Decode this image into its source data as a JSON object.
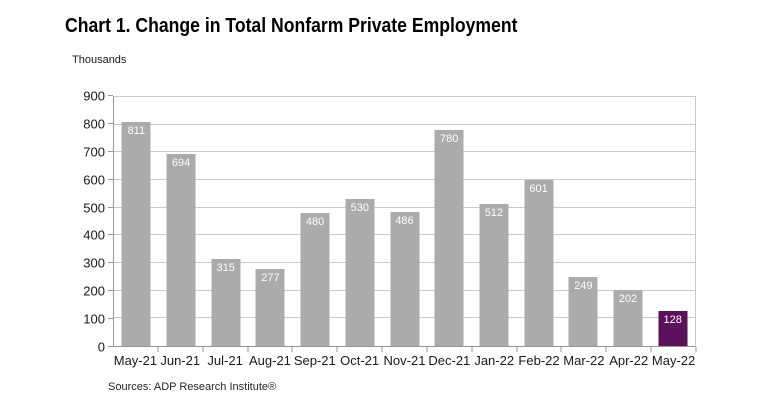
{
  "title": "Chart 1. Change in Total Nonfarm Private Employment",
  "y_axis_unit_label": "Thousands",
  "source_note": "Sources: ADP Research Institute®",
  "chart_data": {
    "type": "bar",
    "title": "Chart 1. Change in Total Nonfarm Private Employment",
    "categories": [
      "May-21",
      "Jun-21",
      "Jul-21",
      "Aug-21",
      "Sep-21",
      "Oct-21",
      "Nov-21",
      "Dec-21",
      "Jan-22",
      "Feb-22",
      "Mar-22",
      "Apr-22",
      "May-22"
    ],
    "values": [
      811,
      694,
      315,
      277,
      480,
      530,
      486,
      780,
      512,
      601,
      249,
      202,
      128
    ],
    "xlabel": "",
    "ylabel": "Thousands",
    "ylim": [
      0,
      900
    ],
    "yticks": [
      0,
      100,
      200,
      300,
      400,
      500,
      600,
      700,
      800,
      900
    ],
    "grid": true,
    "legend": false,
    "value_labels_shown": true,
    "colors": {
      "bar_default": "#ABABAB",
      "bar_highlight": "#5B115B",
      "value_label": "#FFFFFF",
      "gridline": "#C9C9C9",
      "axis_line": "#969696"
    },
    "highlight_index": 12
  }
}
